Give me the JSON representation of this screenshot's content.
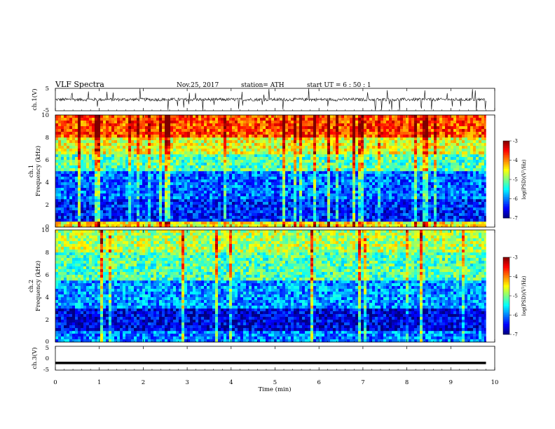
{
  "header": {
    "title": "VLF  Spectra",
    "date": "Nov.25, 2017",
    "station": "station= ATH",
    "start": "start  UT  =   6  : 50 : 1"
  },
  "chart_data": [
    {
      "type": "line",
      "panel": "ch1-waveform",
      "ylabel": "ch.1(V)",
      "ylim": [
        -5,
        5
      ],
      "yticks": [
        "5",
        "-5"
      ],
      "x_range_min": [
        0,
        9.8
      ],
      "baseline_v": 0,
      "color": "#000000"
    },
    {
      "type": "heatmap",
      "panel": "ch1-spectrogram",
      "ylabel_top": "ch.1",
      "ylabel": "Frequency  (kHz)",
      "ylim": [
        0,
        10
      ],
      "yticks": [
        "0",
        "2",
        "4",
        "6",
        "8",
        "10"
      ],
      "x_range_min": [
        0,
        9.8
      ],
      "colorbar": {
        "label": "log(PSD)(V²/Hz)",
        "range": [
          -7,
          -3
        ],
        "ticks": [
          "-3",
          "-4",
          "-5",
          "-6",
          "-7"
        ]
      },
      "mean_log_psd_by_band": [
        {
          "band_khz": [
            0,
            0.5
          ],
          "value": -4.5
        },
        {
          "band_khz": [
            0.5,
            2.5
          ],
          "value": -6.4
        },
        {
          "band_khz": [
            2.5,
            5
          ],
          "value": -6.1
        },
        {
          "band_khz": [
            5,
            6.5
          ],
          "value": -5.2
        },
        {
          "band_khz": [
            6.5,
            8
          ],
          "value": -4.6
        },
        {
          "band_khz": [
            8,
            10
          ],
          "value": -3.8
        }
      ]
    },
    {
      "type": "heatmap",
      "panel": "ch2-spectrogram",
      "ylabel_top": "ch.2",
      "ylabel": "Frequency  (kHz)",
      "ylim": [
        0,
        10
      ],
      "yticks": [
        "0",
        "2",
        "4",
        "6",
        "8",
        "10"
      ],
      "x_range_min": [
        0,
        9.8
      ],
      "colorbar": {
        "label": "log(PSD)(V²/Hz)",
        "range": [
          -7,
          -3
        ],
        "ticks": [
          "-3",
          "-4",
          "-5",
          "-6",
          "-7"
        ]
      },
      "mean_log_psd_by_band": [
        {
          "band_khz": [
            0,
            1
          ],
          "value": -6.0
        },
        {
          "band_khz": [
            1,
            3
          ],
          "value": -6.6
        },
        {
          "band_khz": [
            3,
            5.5
          ],
          "value": -5.9
        },
        {
          "band_khz": [
            5.5,
            8
          ],
          "value": -5.2
        },
        {
          "band_khz": [
            8,
            10
          ],
          "value": -4.8
        }
      ]
    },
    {
      "type": "line",
      "panel": "ch3-waveform",
      "ylabel": "ch.3(V)",
      "ylim": [
        -5,
        5
      ],
      "yticks": [
        "5",
        "0",
        "-5"
      ],
      "x_range_min": [
        0,
        9.8
      ],
      "constant_v": -2,
      "color": "#000000"
    }
  ],
  "xaxis": {
    "label": "Time  (min)",
    "range": [
      0,
      10
    ],
    "ticks": [
      "0",
      "1",
      "2",
      "3",
      "4",
      "5",
      "6",
      "7",
      "8",
      "9",
      "10"
    ]
  }
}
